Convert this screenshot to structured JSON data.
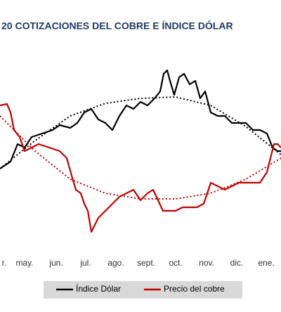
{
  "chart_data": {
    "type": "line",
    "title": "20 COTIZACIONES DEL COBRE E ÍNDICE DÓLAR",
    "xlim": [
      0,
      400
    ],
    "ylim": [
      0,
      250
    ],
    "xticks": [
      {
        "value": 0,
        "label": "r."
      },
      {
        "value": 35,
        "label": "may."
      },
      {
        "value": 80,
        "label": "jun."
      },
      {
        "value": 122,
        "label": "jul."
      },
      {
        "value": 165,
        "label": "ago."
      },
      {
        "value": 208,
        "label": "sept."
      },
      {
        "value": 250,
        "label": "oct."
      },
      {
        "value": 294,
        "label": "nov."
      },
      {
        "value": 337,
        "label": "dic."
      },
      {
        "value": 379,
        "label": "ene."
      }
    ],
    "trend_x": [
      0,
      50,
      100,
      150,
      200,
      250,
      300,
      350,
      400
    ],
    "series": [
      {
        "name": "Índice Dólar",
        "color": "#000000",
        "x": [
          0,
          15,
          25,
          35,
          45,
          60,
          75,
          85,
          100,
          110,
          120,
          130,
          140,
          150,
          160,
          170,
          180,
          190,
          200,
          210,
          220,
          228,
          233,
          238,
          242,
          248,
          255,
          262,
          270,
          278,
          285,
          292,
          300,
          310,
          320,
          330,
          340,
          350,
          360,
          370,
          380,
          388,
          395,
          400
        ],
        "values": [
          100,
          110,
          135,
          130,
          145,
          150,
          155,
          162,
          158,
          165,
          180,
          185,
          170,
          165,
          155,
          175,
          190,
          185,
          195,
          190,
          200,
          210,
          235,
          240,
          225,
          205,
          230,
          235,
          220,
          225,
          200,
          210,
          180,
          175,
          175,
          165,
          165,
          165,
          155,
          155,
          150,
          130,
          125,
          125
        ],
        "trend": [
          100,
          140,
          175,
          193,
          200,
          202,
          190,
          160,
          120
        ]
      },
      {
        "name": "Precio del cobre",
        "color": "#c00000",
        "x": [
          0,
          10,
          15,
          20,
          28,
          35,
          45,
          55,
          70,
          85,
          95,
          102,
          108,
          115,
          120,
          125,
          130,
          135,
          140,
          150,
          160,
          170,
          180,
          190,
          200,
          210,
          218,
          225,
          232,
          240,
          250,
          260,
          270,
          280,
          290,
          295,
          300,
          310,
          320,
          330,
          340,
          350,
          360,
          370,
          380,
          385,
          390,
          395,
          400
        ],
        "values": [
          190,
          192,
          180,
          155,
          145,
          125,
          130,
          135,
          130,
          125,
          115,
          90,
          70,
          65,
          50,
          40,
          10,
          20,
          30,
          40,
          50,
          60,
          65,
          70,
          55,
          65,
          70,
          55,
          40,
          40,
          40,
          45,
          45,
          45,
          50,
          65,
          80,
          75,
          70,
          75,
          80,
          80,
          80,
          80,
          95,
          115,
          135,
          135,
          130
        ],
        "trend": [
          175,
          125,
          85,
          65,
          57,
          57,
          65,
          85,
          115
        ]
      }
    ]
  }
}
